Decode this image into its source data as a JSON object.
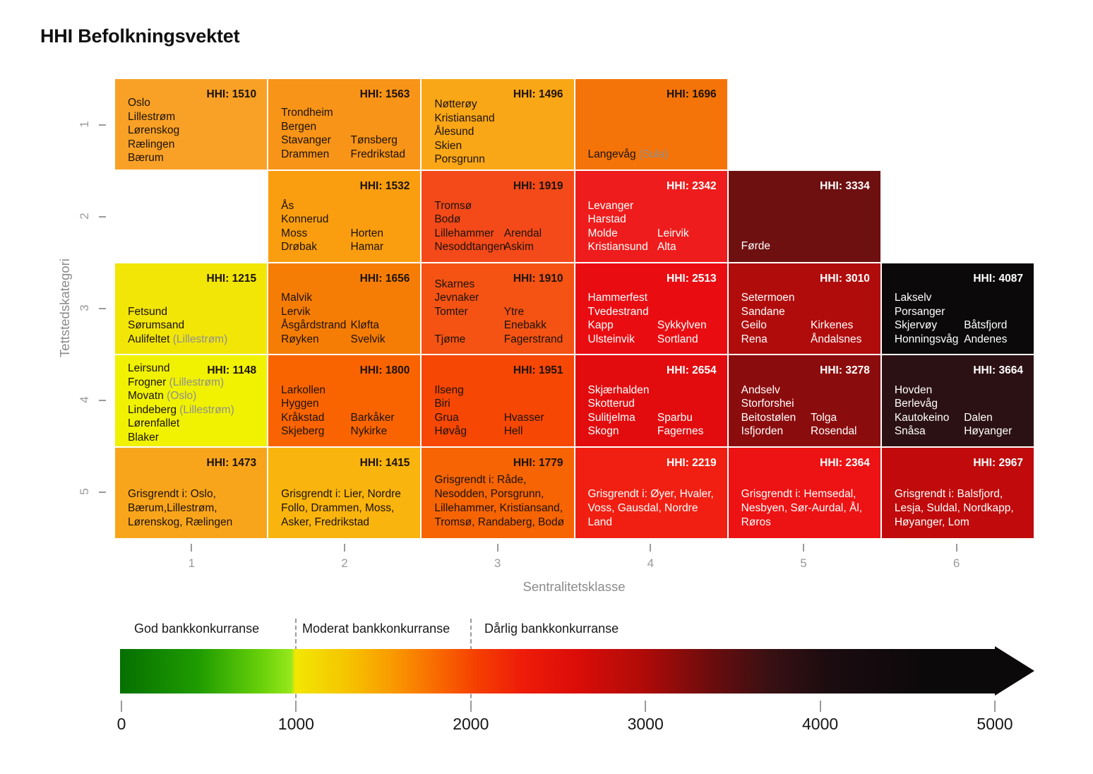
{
  "title": "HHI Befolkningsvektet",
  "axes": {
    "x_label": "Sentralitetsklasse",
    "y_label": "Tettstedskategori",
    "x_ticks": [
      "1",
      "2",
      "3",
      "4",
      "5",
      "6"
    ],
    "y_ticks": [
      "1",
      "2",
      "3",
      "4",
      "5"
    ]
  },
  "legend": {
    "zones": [
      "God bankkonkurranse",
      "Moderat bankkonkurranse",
      "Dårlig bankkonkurranse"
    ],
    "scale_ticks": [
      "0",
      "1000",
      "2000",
      "3000",
      "4000",
      "5000"
    ],
    "icons": {
      "colorbar_arrow": "right-arrow"
    }
  },
  "hhi_prefix": "HHI:",
  "colors": {
    "text_dark": "#1c1208",
    "text_light": "#ffffff",
    "note_gray": "#8f8f8f",
    "axis_gray": "#9a9a9a"
  },
  "chart_data": {
    "type": "heatmap",
    "title": "HHI Befolkningsvektet",
    "xlabel": "Sentralitetsklasse",
    "ylabel": "Tettstedskategori",
    "x_categories": [
      1,
      2,
      3,
      4,
      5,
      6
    ],
    "y_categories": [
      1,
      2,
      3,
      4,
      5
    ],
    "colorbar": {
      "min": 0,
      "max": 5000,
      "zones": [
        {
          "label": "God bankkonkurranse",
          "range": [
            0,
            1000
          ]
        },
        {
          "label": "Moderat bankkonkurranse",
          "range": [
            1000,
            2000
          ]
        },
        {
          "label": "Dårlig bankkonkurranse",
          "range": [
            2000,
            5000
          ]
        }
      ]
    },
    "cells": [
      {
        "row": 1,
        "col": 1,
        "hhi": 1510,
        "bg": "#f9a127",
        "fg": "#1c1208",
        "align": "top",
        "pt": 24,
        "lines": [
          [
            "Oslo"
          ],
          [
            "Lillestrøm"
          ],
          [
            "Lørenskog"
          ],
          [
            "Rælingen"
          ],
          [
            "Bærum"
          ]
        ]
      },
      {
        "row": 1,
        "col": 2,
        "hhi": 1563,
        "bg": "#f89417",
        "fg": "#1c1208",
        "align": "bottom",
        "pb": 12,
        "lines": [
          [
            "Trondheim"
          ],
          [
            "Bergen"
          ],
          [
            "Stavanger",
            "Tønsberg"
          ],
          [
            "Drammen",
            "Fredrikstad"
          ]
        ]
      },
      {
        "row": 1,
        "col": 3,
        "hhi": 1496,
        "bg": "#faa717",
        "fg": "#1c1208",
        "align": "top",
        "pt": 26,
        "lines": [
          [
            "Nøtterøy"
          ],
          [
            "Kristiansand"
          ],
          [
            "Ålesund"
          ],
          [
            "Skien"
          ],
          [
            "Porsgrunn"
          ]
        ]
      },
      {
        "row": 1,
        "col": 4,
        "hhi": 1696,
        "bg": "#f4740a",
        "fg": "#1c1208",
        "align": "bottom",
        "pb": 12,
        "lines": [
          [
            "Langevåg (Sula)"
          ]
        ]
      },
      {
        "row": 2,
        "col": 2,
        "hhi": 1532,
        "bg": "#fa9e0f",
        "fg": "#1c1208",
        "align": "bottom",
        "pb": 11,
        "lines": [
          [
            "Ås"
          ],
          [
            "Konnerud"
          ],
          [
            "Moss",
            "Horten"
          ],
          [
            "Drøbak",
            "Hamar"
          ]
        ]
      },
      {
        "row": 2,
        "col": 3,
        "hhi": 1919,
        "bg": "#f44a1a",
        "fg": "#1c1208",
        "align": "bottom",
        "pb": 11,
        "lines": [
          [
            "Tromsø"
          ],
          [
            "Bodø"
          ],
          [
            "Lillehammer",
            "Arendal"
          ],
          [
            "Nesoddtangen",
            "Askim"
          ]
        ]
      },
      {
        "row": 2,
        "col": 4,
        "hhi": 2342,
        "bg": "#ee1c1c",
        "fg": "#ffffff",
        "align": "bottom",
        "pb": 11,
        "lines": [
          [
            "Levanger"
          ],
          [
            "Harstad"
          ],
          [
            "Molde",
            "Leirvik"
          ],
          [
            "Kristiansund",
            "Alta"
          ]
        ]
      },
      {
        "row": 2,
        "col": 5,
        "hhi": 3334,
        "bg": "#6e0f10",
        "fg": "#ffffff",
        "align": "bottom",
        "pb": 12,
        "lines": [
          [
            "Førde"
          ]
        ]
      },
      {
        "row": 3,
        "col": 1,
        "hhi": 1215,
        "bg": "#f2e607",
        "fg": "#1c1208",
        "align": "bottom",
        "pb": 11,
        "lines": [
          [
            "Fetsund"
          ],
          [
            "Sørumsand"
          ],
          [
            "Aulifeltet (Lillestrøm)"
          ]
        ]
      },
      {
        "row": 3,
        "col": 2,
        "hhi": 1656,
        "bg": "#f67d05",
        "fg": "#1c1208",
        "align": "bottom",
        "pb": 11,
        "lines": [
          [
            "Malvik"
          ],
          [
            "Lervik"
          ],
          [
            "Åsgårdstrand",
            "Kløfta"
          ],
          [
            "Røyken",
            "Svelvik"
          ]
        ]
      },
      {
        "row": 3,
        "col": 3,
        "hhi": 1910,
        "bg": "#f45314",
        "fg": "#1c1208",
        "align": "bottom",
        "pb": 11,
        "lines": [
          [
            "Skarnes"
          ],
          [
            "Jevnaker"
          ],
          [
            "Tomter",
            "Ytre Enebakk"
          ],
          [
            "Tjøme",
            "Fagerstrand"
          ]
        ]
      },
      {
        "row": 3,
        "col": 4,
        "hhi": 2513,
        "bg": "#e90d12",
        "fg": "#ffffff",
        "align": "bottom",
        "pb": 11,
        "lines": [
          [
            "Hammerfest"
          ],
          [
            "Tvedestrand"
          ],
          [
            "Kapp",
            "Sykkylven"
          ],
          [
            "Ulsteinvik",
            "Sortland"
          ]
        ]
      },
      {
        "row": 3,
        "col": 5,
        "hhi": 3010,
        "bg": "#b10c0c",
        "fg": "#ffffff",
        "align": "bottom",
        "pb": 11,
        "lines": [
          [
            "Setermoen"
          ],
          [
            "Sandane"
          ],
          [
            "Geilo",
            "Kirkenes"
          ],
          [
            "Rena",
            "Åndalsnes"
          ]
        ]
      },
      {
        "row": 3,
        "col": 6,
        "hhi": 4087,
        "bg": "#0b0909",
        "fg": "#ffffff",
        "align": "bottom",
        "pb": 11,
        "lines": [
          [
            "Lakselv"
          ],
          [
            "Porsanger"
          ],
          [
            "Skjervøy",
            "Båtsfjord"
          ],
          [
            "Honningsvåg",
            "Andenes"
          ]
        ]
      },
      {
        "row": 4,
        "col": 1,
        "hhi": 1148,
        "bg": "#f0f201",
        "fg": "#1c1208",
        "align": "top",
        "pt": 9,
        "lines": [
          [
            "Leirsund"
          ],
          [
            "Frogner (Lillestrøm)"
          ],
          [
            "Movatn (Oslo)"
          ],
          [
            "Lindeberg (Lillestrøm)"
          ],
          [
            "Lørenfallet"
          ],
          [
            "Blaker"
          ]
        ]
      },
      {
        "row": 4,
        "col": 2,
        "hhi": 1800,
        "bg": "#fa6400",
        "fg": "#1c1208",
        "align": "bottom",
        "pb": 11,
        "lines": [
          [
            "Larkollen"
          ],
          [
            "Hyggen"
          ],
          [
            "Kråkstad",
            "Barkåker"
          ],
          [
            "Skjeberg",
            "Nykirke"
          ]
        ]
      },
      {
        "row": 4,
        "col": 3,
        "hhi": 1951,
        "bg": "#f64704",
        "fg": "#1c1208",
        "align": "bottom",
        "pb": 11,
        "lines": [
          [
            "Ilseng"
          ],
          [
            "Biri"
          ],
          [
            "Grua",
            "Hvasser"
          ],
          [
            "Høvåg",
            "Hell"
          ]
        ]
      },
      {
        "row": 4,
        "col": 4,
        "hhi": 2654,
        "bg": "#e20b0e",
        "fg": "#ffffff",
        "align": "bottom",
        "pb": 11,
        "lines": [
          [
            "Skjærhalden"
          ],
          [
            "Skotterud"
          ],
          [
            "Sulitjelma",
            "Sparbu"
          ],
          [
            "Skogn",
            "Fagernes"
          ]
        ]
      },
      {
        "row": 4,
        "col": 5,
        "hhi": 3278,
        "bg": "#8b0c0d",
        "fg": "#ffffff",
        "align": "bottom",
        "pb": 11,
        "lines": [
          [
            "Andselv"
          ],
          [
            "Storforshei"
          ],
          [
            "Beitostølen",
            "Tolga"
          ],
          [
            "Isfjorden",
            "Rosendal"
          ]
        ]
      },
      {
        "row": 4,
        "col": 6,
        "hhi": 3664,
        "bg": "#2c1114",
        "fg": "#ffffff",
        "align": "bottom",
        "pb": 11,
        "lines": [
          [
            "Hovden"
          ],
          [
            "Berlevåg"
          ],
          [
            "Kautokeino",
            "Dalen"
          ],
          [
            "Snåsa",
            "Høyanger"
          ]
        ]
      },
      {
        "row": 5,
        "col": 1,
        "hhi": 1473,
        "bg": "#f9a51b",
        "fg": "#1c1208",
        "align": "bottom",
        "pb": 12,
        "para": "Grisgrendt i: Oslo, Bærum,Lillestrøm, Lørenskog, Rælingen"
      },
      {
        "row": 5,
        "col": 2,
        "hhi": 1415,
        "bg": "#f9b40d",
        "fg": "#1c1208",
        "align": "bottom",
        "pb": 12,
        "para": "Grisgrendt i: Lier, Nordre Follo, Drammen, Moss, Asker, Fredrikstad"
      },
      {
        "row": 5,
        "col": 3,
        "hhi": 1779,
        "bg": "#f66403",
        "fg": "#1c1208",
        "align": "bottom",
        "pb": 12,
        "para": "Grisgrendt i: Råde, Nesodden, Porsgrunn, Lillehammer, Kristiansand, Tromsø, Randaberg, Bodø"
      },
      {
        "row": 5,
        "col": 4,
        "hhi": 2219,
        "bg": "#f01f12",
        "fg": "#ffffff",
        "align": "bottom",
        "pb": 12,
        "para": "Grisgrendt i: Øyer, Hvaler, Voss, Gausdal, Nordre Land"
      },
      {
        "row": 5,
        "col": 5,
        "hhi": 2364,
        "bg": "#ed1213",
        "fg": "#ffffff",
        "align": "bottom",
        "pb": 12,
        "para": "Grisgrendt i: Hemsedal, Nesbyen, Sør-Aurdal, Ål, Røros"
      },
      {
        "row": 5,
        "col": 6,
        "hhi": 2967,
        "bg": "#c00a0b",
        "fg": "#ffffff",
        "align": "bottom",
        "pb": 12,
        "para": "Grisgrendt i: Balsfjord, Lesja, Suldal, Nordkapp, Høyanger, Lom"
      }
    ]
  }
}
